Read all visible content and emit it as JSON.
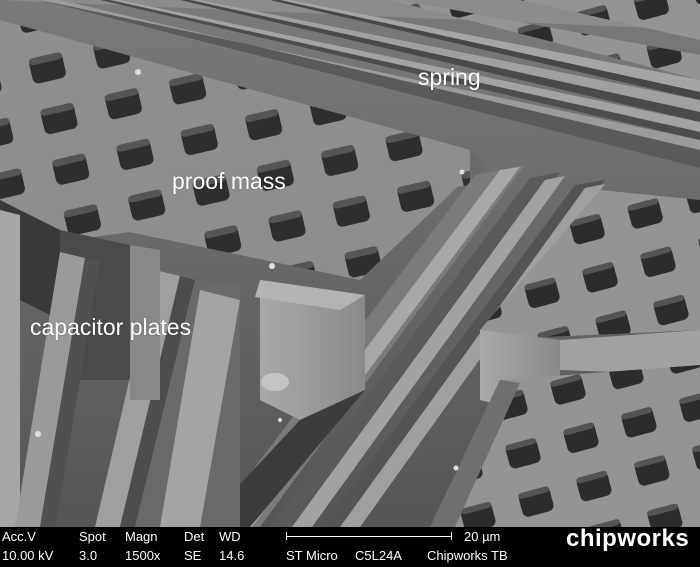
{
  "annotations": {
    "spring": "spring",
    "proof_mass": "proof mass",
    "capacitor_plates": "capacitor plates"
  },
  "info_bar": {
    "acc_v_label": "Acc.V",
    "acc_v_value": "10.00 kV",
    "spot_label": "Spot",
    "spot_value": "3.0",
    "magn_label": "Magn",
    "magn_value": "1500x",
    "det_label": "Det",
    "det_value": "SE",
    "wd_label": "WD",
    "wd_value": "14.6",
    "scale_bar_label": "20 µm",
    "sample_left": "ST Micro",
    "sample_mid": "C5L24A",
    "sample_right": "Chipworks TB",
    "logo": "chipworks"
  },
  "colors": {
    "background": "#000000",
    "text": "#ffffff",
    "surface": "#8f8f8f",
    "trench": "#3a3a3a"
  }
}
